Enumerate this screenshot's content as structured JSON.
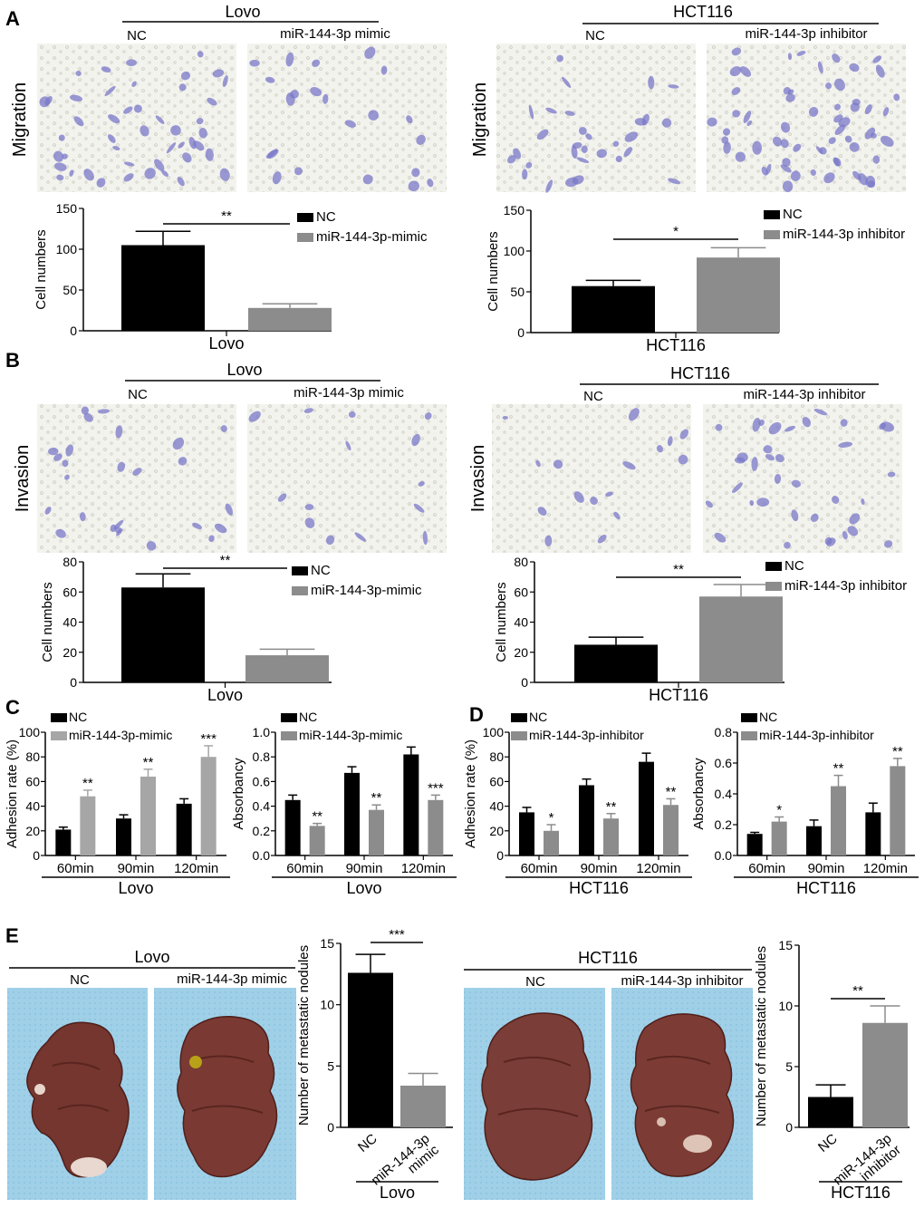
{
  "colors": {
    "nc": "#000000",
    "treat": "#8c8c8c",
    "treat_light": "#a6a6a6",
    "liver_bg": "#9fd0e8",
    "tissue": "#7a3a34"
  },
  "panel_A": {
    "label": "A",
    "left": {
      "header": "Lovo",
      "nc": "NC",
      "treat": "miR-144-3p mimic",
      "row_label": "Migration",
      "chart": {
        "ylabel": "Cell numbers",
        "xlabel": "Lovo",
        "ylim": [
          0,
          150
        ],
        "yticks": [
          0,
          50,
          100,
          150
        ],
        "legend": [
          "NC",
          "miR-144-3p-mimic"
        ],
        "sig": "**",
        "bars": [
          {
            "value": 105,
            "err": 17
          },
          {
            "value": 28,
            "err": 5
          }
        ]
      }
    },
    "right": {
      "header": "HCT116",
      "nc": "NC",
      "treat": "miR-144-3p inhibitor",
      "row_label": "Migration",
      "chart": {
        "ylabel": "Cell numbers",
        "xlabel": "HCT116",
        "ylim": [
          0,
          150
        ],
        "yticks": [
          0,
          50,
          100,
          150
        ],
        "legend": [
          "NC",
          "miR-144-3p inhibitor"
        ],
        "sig": "*",
        "bars": [
          {
            "value": 57,
            "err": 7
          },
          {
            "value": 92,
            "err": 12
          }
        ]
      }
    }
  },
  "panel_B": {
    "label": "B",
    "left": {
      "header": "Lovo",
      "nc": "NC",
      "treat": "miR-144-3p mimic",
      "row_label": "Invasion",
      "chart": {
        "ylabel": "Cell numbers",
        "xlabel": "Lovo",
        "ylim": [
          0,
          80
        ],
        "yticks": [
          0,
          20,
          40,
          60,
          80
        ],
        "legend": [
          "NC",
          "miR-144-3p-mimic"
        ],
        "sig": "**",
        "bars": [
          {
            "value": 63,
            "err": 9
          },
          {
            "value": 18,
            "err": 4
          }
        ]
      }
    },
    "right": {
      "header": "HCT116",
      "nc": "NC",
      "treat": "miR-144-3p inhibitor",
      "row_label": "Invasion",
      "chart": {
        "ylabel": "Cell numbers",
        "xlabel": "HCT116",
        "ylim": [
          0,
          80
        ],
        "yticks": [
          0,
          20,
          40,
          60,
          80
        ],
        "legend": [
          "NC",
          "miR-144-3p inhibitor"
        ],
        "sig": "**",
        "bars": [
          {
            "value": 25,
            "err": 5
          },
          {
            "value": 57,
            "err": 8
          }
        ]
      }
    }
  },
  "panel_C": {
    "label": "C",
    "adhesion": {
      "ylabel": "Adhesion rate (%)",
      "ylim": [
        0,
        100
      ],
      "yticks": [
        0,
        20,
        40,
        60,
        80,
        100
      ],
      "legend": [
        "NC",
        "miR-144-3p-mimic"
      ],
      "xlabel": "Lovo",
      "categories": [
        "60min",
        "90min",
        "120min"
      ],
      "nc": [
        {
          "value": 21,
          "err": 2
        },
        {
          "value": 30,
          "err": 3
        },
        {
          "value": 42,
          "err": 4
        }
      ],
      "treat": [
        {
          "value": 48,
          "err": 5
        },
        {
          "value": 64,
          "err": 6
        },
        {
          "value": 80,
          "err": 9
        }
      ],
      "sig": [
        "**",
        "**",
        "***"
      ]
    },
    "absorbancy": {
      "ylabel": "Absorbancy",
      "ylim": [
        0,
        1.0
      ],
      "yticks": [
        "0.0",
        "0.2",
        "0.4",
        "0.6",
        "0.8",
        "1.0"
      ],
      "legend": [
        "NC",
        "miR-144-3p-mimic"
      ],
      "xlabel": "Lovo",
      "categories": [
        "60min",
        "90min",
        "120min"
      ],
      "nc": [
        {
          "value": 0.45,
          "err": 0.04
        },
        {
          "value": 0.67,
          "err": 0.05
        },
        {
          "value": 0.82,
          "err": 0.06
        }
      ],
      "treat": [
        {
          "value": 0.24,
          "err": 0.02
        },
        {
          "value": 0.37,
          "err": 0.04
        },
        {
          "value": 0.45,
          "err": 0.04
        }
      ],
      "sig": [
        "**",
        "**",
        "***"
      ]
    }
  },
  "panel_D": {
    "label": "D",
    "adhesion": {
      "ylabel": "Adhesion rate (%)",
      "ylim": [
        0,
        100
      ],
      "yticks": [
        0,
        20,
        40,
        60,
        80,
        100
      ],
      "legend": [
        "NC",
        "miR-144-3p-inhibitor"
      ],
      "xlabel": "HCT116",
      "categories": [
        "60min",
        "90min",
        "120min"
      ],
      "nc": [
        {
          "value": 35,
          "err": 4
        },
        {
          "value": 57,
          "err": 5
        },
        {
          "value": 76,
          "err": 7
        }
      ],
      "treat": [
        {
          "value": 20,
          "err": 5
        },
        {
          "value": 30,
          "err": 4
        },
        {
          "value": 41,
          "err": 5
        }
      ],
      "sig": [
        "*",
        "**",
        "**"
      ]
    },
    "absorbancy": {
      "ylabel": "Absorbancy",
      "ylim": [
        0,
        0.8
      ],
      "yticks": [
        "0.0",
        "0.2",
        "0.4",
        "0.6",
        "0.8"
      ],
      "legend": [
        "NC",
        "miR-144-3p-inhibitor"
      ],
      "xlabel": "HCT116",
      "categories": [
        "60min",
        "90min",
        "120min"
      ],
      "nc": [
        {
          "value": 0.14,
          "err": 0.01
        },
        {
          "value": 0.19,
          "err": 0.04
        },
        {
          "value": 0.28,
          "err": 0.06
        }
      ],
      "treat": [
        {
          "value": 0.22,
          "err": 0.03
        },
        {
          "value": 0.45,
          "err": 0.07
        },
        {
          "value": 0.58,
          "err": 0.05
        }
      ],
      "sig": [
        "*",
        "**",
        "**"
      ]
    }
  },
  "panel_E": {
    "label": "E",
    "left": {
      "header": "Lovo",
      "nc": "NC",
      "treat": "miR-144-3p mimic",
      "chart": {
        "ylabel": "Number of metastatic nodules",
        "xlabel": "Lovo",
        "ylim": [
          0,
          15
        ],
        "yticks": [
          0,
          5,
          10,
          15
        ],
        "cats": [
          "NC",
          "miR-144-3p mimic"
        ],
        "sig": "***",
        "bars": [
          {
            "value": 12.6,
            "err": 1.5
          },
          {
            "value": 3.4,
            "err": 1.0
          }
        ]
      }
    },
    "right": {
      "header": "HCT116",
      "nc": "NC",
      "treat": "miR-144-3p inhibitor",
      "chart": {
        "ylabel": "Number of metastatic nodules",
        "xlabel": "HCT116",
        "ylim": [
          0,
          15
        ],
        "yticks": [
          0,
          5,
          10,
          15
        ],
        "cats": [
          "NC",
          "miR-144-3p inhibitor"
        ],
        "sig": "**",
        "bars": [
          {
            "value": 2.5,
            "err": 1.0
          },
          {
            "value": 8.6,
            "err": 1.4
          }
        ]
      }
    }
  }
}
